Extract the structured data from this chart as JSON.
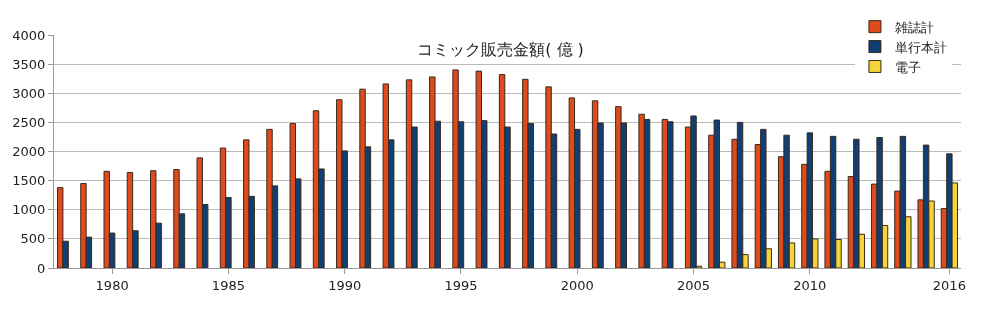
{
  "chart_data": {
    "type": "bar",
    "title": "コミック販売金額( 億 )",
    "categories": [
      null,
      null,
      "1980",
      null,
      null,
      null,
      null,
      "1985",
      null,
      null,
      null,
      null,
      "1990",
      null,
      null,
      null,
      null,
      "1995",
      null,
      null,
      null,
      null,
      "2000",
      null,
      null,
      null,
      null,
      "2005",
      null,
      null,
      null,
      null,
      "2010",
      null,
      null,
      null,
      null,
      null,
      "2016"
    ],
    "series": [
      {
        "name": "雑誌計",
        "color": "#e04a1f",
        "values": [
          1380,
          1450,
          1660,
          1640,
          1670,
          1690,
          1890,
          2060,
          2200,
          2380,
          2480,
          2700,
          2890,
          3070,
          3160,
          3230,
          3280,
          3400,
          3380,
          3320,
          3240,
          3110,
          2920,
          2870,
          2770,
          2640,
          2550,
          2420,
          2280,
          2210,
          2120,
          1910,
          1780,
          1660,
          1570,
          1440,
          1320,
          1170,
          1020
        ]
      },
      {
        "name": "単行本計",
        "color": "#0f3f73",
        "values": [
          460,
          530,
          600,
          640,
          770,
          930,
          1090,
          1210,
          1230,
          1410,
          1530,
          1700,
          2010,
          2080,
          2200,
          2420,
          2520,
          2510,
          2530,
          2420,
          2480,
          2300,
          2380,
          2490,
          2490,
          2550,
          2510,
          2610,
          2540,
          2500,
          2380,
          2280,
          2320,
          2260,
          2210,
          2240,
          2260,
          2110,
          1960
        ]
      },
      {
        "name": "電子",
        "color": "#f5d33a",
        "values": [
          null,
          null,
          null,
          null,
          null,
          null,
          null,
          null,
          null,
          null,
          null,
          null,
          null,
          null,
          null,
          null,
          null,
          null,
          null,
          null,
          null,
          null,
          null,
          null,
          null,
          null,
          null,
          30,
          100,
          230,
          330,
          430,
          500,
          490,
          580,
          730,
          880,
          1150,
          1460
        ]
      }
    ],
    "ylim": [
      0,
      4000
    ],
    "yticks": [
      0,
      500,
      1000,
      1500,
      2000,
      2500,
      3000,
      3500,
      4000
    ],
    "grid": "y",
    "legend": "top right"
  }
}
